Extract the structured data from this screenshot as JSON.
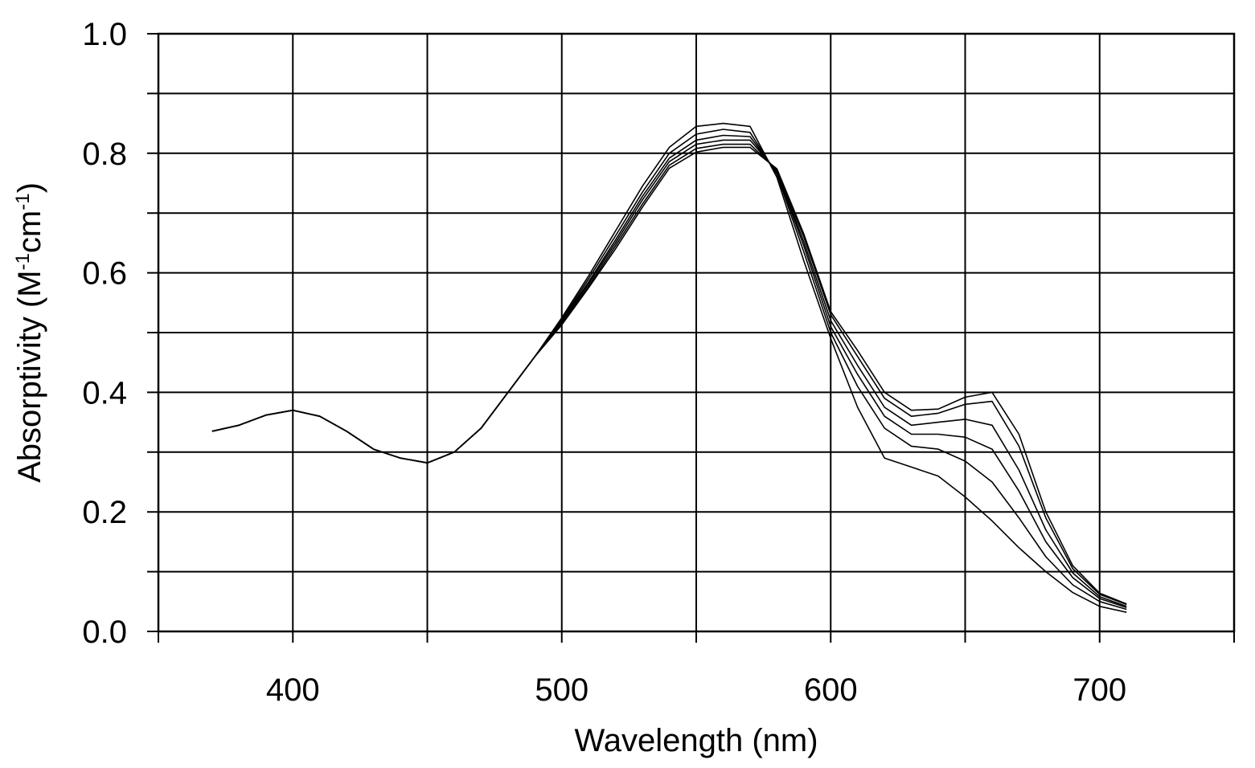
{
  "chart_data": {
    "type": "line",
    "title": "",
    "xlabel": "Wavelength (nm)",
    "ylabel_main": "Absorptivity (M",
    "ylabel_sup1": "-1",
    "ylabel_mid": "cm",
    "ylabel_sup2": "-1",
    "ylabel_end": ")",
    "xlim": [
      350,
      750
    ],
    "ylim": [
      0.0,
      1.0
    ],
    "x_ticks": [
      400,
      500,
      600,
      700
    ],
    "x_tick_labels": [
      "400",
      "500",
      "600",
      "700"
    ],
    "x_minor_ticks": [
      350,
      450,
      550,
      650,
      750
    ],
    "y_ticks": [
      0.0,
      0.2,
      0.4,
      0.6,
      0.8,
      1.0
    ],
    "y_tick_labels": [
      "0.0",
      "0.2",
      "0.4",
      "0.6",
      "0.8",
      "1.0"
    ],
    "y_minor_ticks": [
      0.1,
      0.3,
      0.5,
      0.7,
      0.9
    ],
    "grid": true,
    "legend": "none",
    "line_color": "#000000",
    "series": [
      {
        "x": [
          370,
          380,
          390,
          400,
          410,
          420,
          430,
          440,
          450,
          460,
          470,
          480,
          490,
          500,
          510,
          520,
          530,
          540,
          550,
          560,
          570,
          580,
          590,
          600,
          610,
          620,
          630,
          640,
          650,
          660,
          670,
          680,
          690,
          700,
          710
        ],
        "values": [
          0.335,
          0.345,
          0.362,
          0.37,
          0.36,
          0.335,
          0.305,
          0.29,
          0.282,
          0.3,
          0.34,
          0.4,
          0.46,
          0.525,
          0.595,
          0.67,
          0.745,
          0.81,
          0.845,
          0.85,
          0.845,
          0.76,
          0.62,
          0.49,
          0.375,
          0.29,
          0.275,
          0.26,
          0.225,
          0.185,
          0.14,
          0.1,
          0.065,
          0.042,
          0.032
        ]
      },
      {
        "x": [
          370,
          380,
          390,
          400,
          410,
          420,
          430,
          440,
          450,
          460,
          470,
          480,
          490,
          500,
          510,
          520,
          530,
          540,
          550,
          560,
          570,
          580,
          590,
          600,
          610,
          620,
          630,
          640,
          650,
          660,
          670,
          680,
          690,
          700,
          710
        ],
        "values": [
          0.335,
          0.345,
          0.362,
          0.37,
          0.36,
          0.335,
          0.305,
          0.29,
          0.282,
          0.3,
          0.34,
          0.4,
          0.46,
          0.522,
          0.59,
          0.662,
          0.735,
          0.8,
          0.832,
          0.84,
          0.835,
          0.765,
          0.635,
          0.5,
          0.41,
          0.34,
          0.31,
          0.305,
          0.285,
          0.25,
          0.19,
          0.125,
          0.078,
          0.05,
          0.037
        ]
      },
      {
        "x": [
          370,
          380,
          390,
          400,
          410,
          420,
          430,
          440,
          450,
          460,
          470,
          480,
          490,
          500,
          510,
          520,
          530,
          540,
          550,
          560,
          570,
          580,
          590,
          600,
          610,
          620,
          630,
          640,
          650,
          660,
          670,
          680,
          690,
          700,
          710
        ],
        "values": [
          0.335,
          0.345,
          0.362,
          0.37,
          0.36,
          0.335,
          0.305,
          0.29,
          0.282,
          0.3,
          0.34,
          0.4,
          0.46,
          0.52,
          0.585,
          0.655,
          0.728,
          0.792,
          0.822,
          0.83,
          0.828,
          0.768,
          0.645,
          0.51,
          0.43,
          0.36,
          0.33,
          0.33,
          0.325,
          0.305,
          0.235,
          0.15,
          0.09,
          0.055,
          0.04
        ]
      },
      {
        "x": [
          370,
          380,
          390,
          400,
          410,
          420,
          430,
          440,
          450,
          460,
          470,
          480,
          490,
          500,
          510,
          520,
          530,
          540,
          550,
          560,
          570,
          580,
          590,
          600,
          610,
          620,
          630,
          640,
          650,
          660,
          670,
          680,
          690,
          700,
          710
        ],
        "values": [
          0.335,
          0.345,
          0.362,
          0.37,
          0.36,
          0.335,
          0.305,
          0.29,
          0.282,
          0.3,
          0.34,
          0.4,
          0.46,
          0.518,
          0.582,
          0.65,
          0.722,
          0.786,
          0.815,
          0.822,
          0.822,
          0.77,
          0.652,
          0.52,
          0.445,
          0.375,
          0.345,
          0.35,
          0.355,
          0.345,
          0.27,
          0.17,
          0.098,
          0.058,
          0.042
        ]
      },
      {
        "x": [
          370,
          380,
          390,
          400,
          410,
          420,
          430,
          440,
          450,
          460,
          470,
          480,
          490,
          500,
          510,
          520,
          530,
          540,
          550,
          560,
          570,
          580,
          590,
          600,
          610,
          620,
          630,
          640,
          650,
          660,
          670,
          680,
          690,
          700,
          710
        ],
        "values": [
          0.335,
          0.345,
          0.362,
          0.37,
          0.36,
          0.335,
          0.305,
          0.29,
          0.282,
          0.3,
          0.34,
          0.4,
          0.46,
          0.515,
          0.578,
          0.645,
          0.715,
          0.78,
          0.808,
          0.815,
          0.815,
          0.772,
          0.66,
          0.53,
          0.46,
          0.39,
          0.36,
          0.365,
          0.38,
          0.385,
          0.31,
          0.19,
          0.105,
          0.062,
          0.045
        ]
      },
      {
        "x": [
          370,
          380,
          390,
          400,
          410,
          420,
          430,
          440,
          450,
          460,
          470,
          480,
          490,
          500,
          510,
          520,
          530,
          540,
          550,
          560,
          570,
          580,
          590,
          600,
          610,
          620,
          630,
          640,
          650,
          660,
          670,
          680,
          690,
          700,
          710
        ],
        "values": [
          0.335,
          0.345,
          0.362,
          0.37,
          0.36,
          0.335,
          0.305,
          0.29,
          0.282,
          0.3,
          0.34,
          0.4,
          0.46,
          0.513,
          0.575,
          0.64,
          0.71,
          0.775,
          0.802,
          0.81,
          0.81,
          0.774,
          0.665,
          0.535,
          0.47,
          0.4,
          0.37,
          0.372,
          0.392,
          0.4,
          0.33,
          0.2,
          0.11,
          0.064,
          0.046
        ]
      }
    ]
  }
}
